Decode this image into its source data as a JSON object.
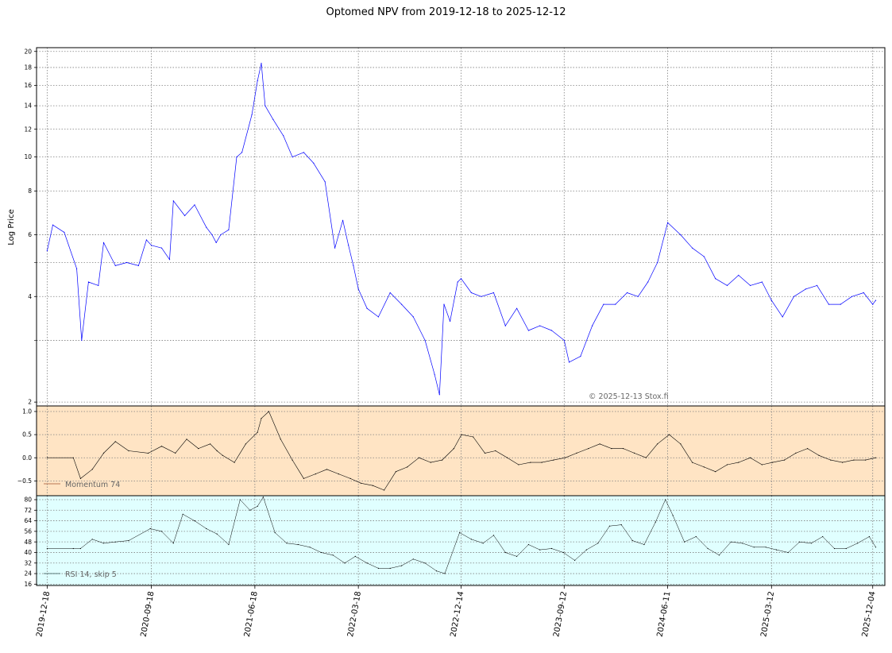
{
  "title": "Optomed NPV from 2019-12-18 to 2025-12-12",
  "watermark": "© 2025-12-13 Stox.fi",
  "colors": {
    "price_line": "#0000ff",
    "momentum_bg": "#ffe4c4",
    "rsi_bg": "#e0ffff",
    "indicator_line": "#000000",
    "grid": "#808080"
  },
  "chart_data": [
    {
      "type": "line",
      "ylabel": "Log Price",
      "yscale": "log",
      "ylim": [
        1.95,
        20.5
      ],
      "yticks": [
        2,
        4,
        6,
        8,
        10,
        12,
        14,
        16,
        18,
        20
      ],
      "yticklabels": [
        "2",
        "4",
        "6",
        "8",
        "10",
        "12",
        "14",
        "16",
        "18",
        "20"
      ],
      "xticklabels": [
        "2019-12-18",
        "2020-09-18",
        "2021-06-18",
        "2022-03-18",
        "2022-12-14",
        "2023-09-12",
        "2024-06-11",
        "2025-03-12",
        "2025-12-04"
      ],
      "grid": true,
      "series": [
        {
          "x": [
            "2019-12-18",
            "2020-01-02",
            "2020-02-01",
            "2020-03-05",
            "2020-03-18",
            "2020-04-05",
            "2020-05-01",
            "2020-05-15",
            "2020-06-15",
            "2020-07-15",
            "2020-08-15",
            "2020-09-05",
            "2020-09-18",
            "2020-10-15",
            "2020-11-05",
            "2020-11-15",
            "2020-12-15",
            "2021-01-10",
            "2021-02-10",
            "2021-02-25",
            "2021-03-08",
            "2021-03-20",
            "2021-04-10",
            "2021-05-01",
            "2021-05-15",
            "2021-06-10",
            "2021-06-25",
            "2021-07-05",
            "2021-07-15",
            "2021-08-05",
            "2021-09-01",
            "2021-09-25",
            "2021-10-25",
            "2021-11-20",
            "2021-12-20",
            "2022-01-15",
            "2022-02-05",
            "2022-02-20",
            "2022-03-05",
            "2022-03-18",
            "2022-04-10",
            "2022-05-10",
            "2022-06-10",
            "2022-07-10",
            "2022-08-10",
            "2022-09-10",
            "2022-10-05",
            "2022-10-18",
            "2022-10-30",
            "2022-11-15",
            "2022-12-05",
            "2022-12-14",
            "2023-01-10",
            "2023-02-05",
            "2023-03-10",
            "2023-04-10",
            "2023-05-10",
            "2023-06-10",
            "2023-07-10",
            "2023-08-10",
            "2023-09-12",
            "2023-09-25",
            "2023-10-25",
            "2023-11-25",
            "2023-12-25",
            "2024-01-25",
            "2024-02-25",
            "2024-03-25",
            "2024-04-20",
            "2024-05-15",
            "2024-06-11",
            "2024-07-15",
            "2024-08-15",
            "2024-09-15",
            "2024-10-15",
            "2024-11-15",
            "2024-12-15",
            "2025-01-15",
            "2025-02-15",
            "2025-03-12",
            "2025-04-10",
            "2025-05-10",
            "2025-06-10",
            "2025-07-10",
            "2025-08-10",
            "2025-09-10",
            "2025-10-10",
            "2025-11-10",
            "2025-12-04",
            "2025-12-12"
          ],
          "y": [
            5.4,
            6.4,
            6.1,
            4.8,
            3.0,
            4.4,
            4.3,
            5.7,
            4.9,
            5.0,
            4.9,
            5.8,
            5.6,
            5.5,
            5.1,
            7.5,
            6.8,
            7.3,
            6.3,
            6.0,
            5.7,
            6.0,
            6.2,
            10.0,
            10.3,
            13.2,
            16.5,
            18.5,
            14.0,
            12.8,
            11.5,
            10.0,
            10.3,
            9.6,
            8.5,
            5.5,
            6.6,
            5.6,
            4.9,
            4.2,
            3.7,
            3.5,
            4.1,
            3.8,
            3.5,
            3.0,
            2.4,
            2.1,
            3.8,
            3.4,
            4.4,
            4.5,
            4.1,
            4.0,
            4.1,
            3.3,
            3.7,
            3.2,
            3.3,
            3.2,
            3.0,
            2.6,
            2.7,
            3.3,
            3.8,
            3.8,
            4.1,
            4.0,
            4.4,
            5.0,
            6.5,
            6.0,
            5.5,
            5.2,
            4.5,
            4.3,
            4.6,
            4.3,
            4.4,
            3.9,
            3.5,
            4.0,
            4.2,
            4.3,
            3.8,
            3.8,
            4.0,
            4.1,
            3.8,
            3.9
          ]
        }
      ]
    },
    {
      "type": "line",
      "ylim": [
        -0.82,
        1.12
      ],
      "yticks": [
        -0.5,
        0.0,
        0.5,
        1.0
      ],
      "yticklabels": [
        "−0.5",
        "0.0",
        "0.5",
        "1.0"
      ],
      "grid": true,
      "legend": "lower-left",
      "series": [
        {
          "name": "Momentum 74",
          "x": [
            "2019-12-18",
            "2020-02-25",
            "2020-03-15",
            "2020-04-15",
            "2020-05-15",
            "2020-06-15",
            "2020-07-20",
            "2020-09-10",
            "2020-10-15",
            "2020-11-20",
            "2020-12-20",
            "2021-01-20",
            "2021-02-20",
            "2021-03-10",
            "2021-03-25",
            "2021-04-25",
            "2021-05-25",
            "2021-06-25",
            "2021-07-05",
            "2021-07-25",
            "2021-08-25",
            "2021-09-25",
            "2021-10-25",
            "2021-11-25",
            "2021-12-25",
            "2022-01-25",
            "2022-02-25",
            "2022-03-25",
            "2022-04-25",
            "2022-05-25",
            "2022-06-25",
            "2022-07-25",
            "2022-08-25",
            "2022-09-25",
            "2022-10-25",
            "2022-11-25",
            "2022-12-15",
            "2023-01-15",
            "2023-02-15",
            "2023-03-15",
            "2023-04-15",
            "2023-05-15",
            "2023-06-15",
            "2023-07-15",
            "2023-08-15",
            "2023-09-15",
            "2023-10-15",
            "2023-11-15",
            "2023-12-15",
            "2024-01-15",
            "2024-02-15",
            "2024-03-15",
            "2024-04-15",
            "2024-05-15",
            "2024-06-15",
            "2024-07-15",
            "2024-08-15",
            "2024-09-15",
            "2024-10-15",
            "2024-11-15",
            "2024-12-15",
            "2025-01-15",
            "2025-02-15",
            "2025-03-15",
            "2025-04-15",
            "2025-05-15",
            "2025-06-15",
            "2025-07-15",
            "2025-08-15",
            "2025-09-15",
            "2025-10-15",
            "2025-11-15",
            "2025-12-12"
          ],
          "y": [
            0.0,
            0.0,
            -0.45,
            -0.25,
            0.1,
            0.35,
            0.15,
            0.1,
            0.25,
            0.1,
            0.4,
            0.2,
            0.3,
            0.15,
            0.05,
            -0.1,
            0.3,
            0.55,
            0.85,
            1.0,
            0.4,
            -0.05,
            -0.45,
            -0.35,
            -0.25,
            -0.35,
            -0.45,
            -0.55,
            -0.6,
            -0.7,
            -0.3,
            -0.2,
            0.0,
            -0.1,
            -0.05,
            0.2,
            0.5,
            0.45,
            0.1,
            0.15,
            0.0,
            -0.15,
            -0.1,
            -0.1,
            -0.05,
            0.0,
            0.1,
            0.2,
            0.3,
            0.2,
            0.2,
            0.1,
            0.0,
            0.3,
            0.5,
            0.3,
            -0.1,
            -0.2,
            -0.3,
            -0.15,
            -0.1,
            0.0,
            -0.15,
            -0.1,
            -0.05,
            0.1,
            0.2,
            0.05,
            -0.05,
            -0.1,
            -0.05,
            -0.05,
            0.0
          ]
        }
      ]
    },
    {
      "type": "line",
      "ylim": [
        15,
        83
      ],
      "yticks": [
        16,
        24,
        32,
        40,
        48,
        56,
        64,
        72,
        80
      ],
      "yticklabels": [
        "16",
        "24",
        "32",
        "40",
        "48",
        "56",
        "64",
        "72",
        "80"
      ],
      "grid": true,
      "legend": "lower-left",
      "series": [
        {
          "name": "RSI 14, skip 5",
          "x": [
            "2019-12-18",
            "2020-02-25",
            "2020-03-15",
            "2020-04-15",
            "2020-05-15",
            "2020-06-15",
            "2020-07-20",
            "2020-09-15",
            "2020-10-15",
            "2020-11-15",
            "2020-12-10",
            "2021-01-10",
            "2021-02-10",
            "2021-03-10",
            "2021-04-10",
            "2021-05-10",
            "2021-06-05",
            "2021-06-25",
            "2021-07-10",
            "2021-08-10",
            "2021-09-10",
            "2021-10-10",
            "2021-11-10",
            "2021-12-10",
            "2022-01-10",
            "2022-02-10",
            "2022-03-10",
            "2022-04-10",
            "2022-05-10",
            "2022-06-10",
            "2022-07-10",
            "2022-08-10",
            "2022-09-10",
            "2022-10-10",
            "2022-11-01",
            "2022-12-10",
            "2023-01-10",
            "2023-02-10",
            "2023-03-10",
            "2023-04-10",
            "2023-05-10",
            "2023-06-10",
            "2023-07-10",
            "2023-08-10",
            "2023-09-10",
            "2023-10-10",
            "2023-11-10",
            "2023-12-10",
            "2024-01-10",
            "2024-02-10",
            "2024-03-10",
            "2024-04-10",
            "2024-05-10",
            "2024-06-05",
            "2024-06-25",
            "2024-07-25",
            "2024-08-25",
            "2024-09-25",
            "2024-10-25",
            "2024-11-25",
            "2024-12-25",
            "2025-01-25",
            "2025-02-25",
            "2025-03-25",
            "2025-04-25",
            "2025-05-25",
            "2025-06-25",
            "2025-07-25",
            "2025-08-25",
            "2025-09-25",
            "2025-10-25",
            "2025-11-25",
            "2025-12-12"
          ],
          "y": [
            43,
            43,
            43,
            50,
            47,
            48,
            49,
            58,
            56,
            47,
            69,
            64,
            58,
            54,
            46,
            80,
            72,
            75,
            82,
            55,
            47,
            46,
            44,
            40,
            38,
            32,
            37,
            32,
            28,
            28,
            30,
            35,
            32,
            26,
            24,
            55,
            50,
            47,
            53,
            40,
            37,
            46,
            42,
            43,
            40,
            34,
            42,
            47,
            60,
            61,
            49,
            46,
            63,
            80,
            68,
            48,
            52,
            43,
            38,
            48,
            47,
            44,
            44,
            42,
            40,
            48,
            47,
            52,
            43,
            43,
            47,
            52,
            44
          ]
        }
      ]
    }
  ]
}
